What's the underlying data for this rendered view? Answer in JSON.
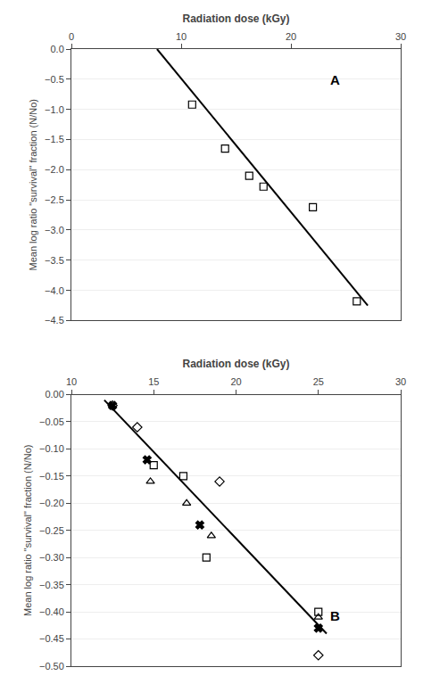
{
  "chart_data": [
    {
      "type": "scatter",
      "xlabel": "Radiation dose (kGy)",
      "ylabel": "Mean log ratio \"survival\" fraction (N/No)",
      "annotations": [
        "A"
      ],
      "xlim": [
        0,
        30
      ],
      "ylim": [
        -4.5,
        0
      ],
      "xticks": [
        0,
        10,
        20,
        30
      ],
      "yticks": [
        {
          "value": 0,
          "label": "0.0"
        },
        {
          "value": -0.5,
          "label": "−0.5"
        },
        {
          "value": -1,
          "label": "−1.0"
        },
        {
          "value": -1.5,
          "label": "−1.5"
        },
        {
          "value": -2,
          "label": "−2.0"
        },
        {
          "value": -2.5,
          "label": "−2.5"
        },
        {
          "value": -3,
          "label": "−3.0"
        },
        {
          "value": -3.5,
          "label": "−3.5"
        },
        {
          "value": -4,
          "label": "−4.0"
        },
        {
          "value": -4.5,
          "label": "−4.5"
        }
      ],
      "grid": "y",
      "series": [
        {
          "type": "scatter",
          "marker": "square",
          "color": "#000000",
          "x": [
            11.0,
            14.0,
            16.2,
            17.5,
            22.0,
            26.0
          ],
          "values": [
            -0.92,
            -1.65,
            -2.1,
            -2.28,
            -2.62,
            -4.18
          ]
        },
        {
          "type": "line",
          "line_style": "solid",
          "color": "#000000",
          "x": [
            7.8,
            27.0
          ],
          "values": [
            0.0,
            -4.25
          ]
        }
      ]
    },
    {
      "type": "scatter",
      "xlabel": "Radiation dose (kGy)",
      "ylabel": "Mean log ratio \"survival\" fraction (N/No)",
      "annotations": [
        "B"
      ],
      "xlim": [
        10,
        30
      ],
      "ylim": [
        -0.5,
        0
      ],
      "xticks": [
        10,
        15,
        20,
        25,
        30
      ],
      "yticks": [
        {
          "value": 0,
          "label": "0.00"
        },
        {
          "value": -0.05,
          "label": "−0.05"
        },
        {
          "value": -0.1,
          "label": "−0.10"
        },
        {
          "value": -0.15,
          "label": "−0.15"
        },
        {
          "value": -0.2,
          "label": "−0.20"
        },
        {
          "value": -0.25,
          "label": "−0.25"
        },
        {
          "value": -0.3,
          "label": "−0.30"
        },
        {
          "value": -0.35,
          "label": "−0.35"
        },
        {
          "value": -0.4,
          "label": "−0.40"
        },
        {
          "value": -0.45,
          "label": "−0.45"
        },
        {
          "value": -0.5,
          "label": "−0.50"
        }
      ],
      "grid": "y",
      "series": [
        {
          "type": "scatter",
          "marker": "square",
          "color": "#000000",
          "x": [
            15.0,
            16.8,
            18.2,
            25.0
          ],
          "values": [
            -0.13,
            -0.15,
            -0.3,
            -0.4
          ]
        },
        {
          "type": "scatter",
          "marker": "triangle-up",
          "color": "#000000",
          "x": [
            14.8,
            17.0,
            18.5,
            25.0
          ],
          "values": [
            -0.16,
            -0.2,
            -0.26,
            -0.41
          ]
        },
        {
          "type": "scatter",
          "marker": "diamond",
          "color": "#000000",
          "x": [
            12.5,
            14.0,
            19.0,
            25.0
          ],
          "values": [
            -0.02,
            -0.06,
            -0.16,
            -0.48
          ]
        },
        {
          "type": "scatter",
          "marker": "x",
          "color": "#000000",
          "x": [
            12.5,
            14.6,
            17.8,
            25.0
          ],
          "values": [
            -0.02,
            -0.12,
            -0.24,
            -0.43
          ]
        },
        {
          "type": "line",
          "line_style": "solid",
          "color": "#000000",
          "x": [
            12.0,
            25.5
          ],
          "values": [
            -0.01,
            -0.44
          ]
        }
      ]
    }
  ]
}
